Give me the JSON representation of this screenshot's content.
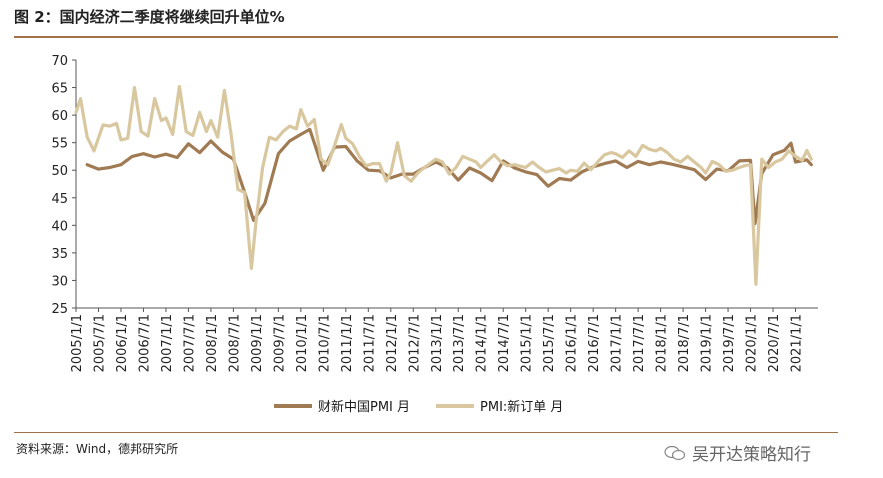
{
  "header": {
    "title": "图 2：国内经济二季度将继续回升单位%"
  },
  "footer": {
    "source": "资料来源：Wind，德邦研究所",
    "watermark": "吴开达策略知行"
  },
  "colors": {
    "series_1": "#a07a52",
    "series_2": "#d9c79f",
    "rule": "#a0724a"
  },
  "chart_data": {
    "type": "line",
    "title": "",
    "xlabel": "",
    "ylabel": "",
    "ylim": [
      25,
      70
    ],
    "yticks": [
      25,
      30,
      35,
      40,
      45,
      50,
      55,
      60,
      65,
      70
    ],
    "xticks": [
      "2005/1/1",
      "2005/7/1",
      "2006/1/1",
      "2006/7/1",
      "2007/1/1",
      "2007/7/1",
      "2008/1/1",
      "2008/7/1",
      "2009/1/1",
      "2009/7/1",
      "2010/1/1",
      "2010/7/1",
      "2011/1/1",
      "2011/7/1",
      "2012/1/1",
      "2012/7/1",
      "2013/1/1",
      "2013/7/1",
      "2014/1/1",
      "2014/7/1",
      "2015/1/1",
      "2015/7/1",
      "2016/1/1",
      "2016/7/1",
      "2017/1/1",
      "2017/7/1",
      "2018/1/1",
      "2018/7/1",
      "2019/1/1",
      "2019/7/1",
      "2020/1/1",
      "2020/7/1",
      "2021/1/1"
    ],
    "grid": false,
    "legend_position": "bottom-center",
    "series": [
      {
        "name": "财新中国PMI 月",
        "points": [
          [
            2005.0,
            null
          ],
          [
            2005.25,
            51
          ],
          [
            2005.5,
            50.2
          ],
          [
            2005.75,
            50.5
          ],
          [
            2006.0,
            51
          ],
          [
            2006.25,
            52.5
          ],
          [
            2006.5,
            53
          ],
          [
            2006.75,
            52.4
          ],
          [
            2007.0,
            52.9
          ],
          [
            2007.25,
            52.3
          ],
          [
            2007.5,
            54.8
          ],
          [
            2007.75,
            53.2
          ],
          [
            2008.0,
            55.3
          ],
          [
            2008.25,
            53.3
          ],
          [
            2008.5,
            52
          ],
          [
            2008.75,
            46
          ],
          [
            2008.95,
            40.9
          ],
          [
            2009.2,
            44
          ],
          [
            2009.5,
            53
          ],
          [
            2009.75,
            55.3
          ],
          [
            2010.0,
            56.5
          ],
          [
            2010.2,
            57.4
          ],
          [
            2010.5,
            50
          ],
          [
            2010.75,
            54.2
          ],
          [
            2011.0,
            54.3
          ],
          [
            2011.25,
            51.7
          ],
          [
            2011.5,
            50
          ],
          [
            2011.75,
            49.9
          ],
          [
            2012.0,
            48.6
          ],
          [
            2012.25,
            49.3
          ],
          [
            2012.5,
            49.3
          ],
          [
            2012.75,
            50.5
          ],
          [
            2013.0,
            51.5
          ],
          [
            2013.25,
            50.5
          ],
          [
            2013.5,
            48.2
          ],
          [
            2013.75,
            50.4
          ],
          [
            2014.0,
            49.5
          ],
          [
            2014.25,
            48.1
          ],
          [
            2014.5,
            51.7
          ],
          [
            2014.75,
            50.4
          ],
          [
            2015.0,
            49.7
          ],
          [
            2015.25,
            49.2
          ],
          [
            2015.5,
            47.1
          ],
          [
            2015.75,
            48.5
          ],
          [
            2016.0,
            48.2
          ],
          [
            2016.25,
            49.7
          ],
          [
            2016.5,
            50.6
          ],
          [
            2016.75,
            51.2
          ],
          [
            2017.0,
            51.7
          ],
          [
            2017.25,
            50.5
          ],
          [
            2017.5,
            51.6
          ],
          [
            2017.75,
            51
          ],
          [
            2018.0,
            51.5
          ],
          [
            2018.25,
            51.1
          ],
          [
            2018.5,
            50.6
          ],
          [
            2018.75,
            50.1
          ],
          [
            2019.0,
            48.3
          ],
          [
            2019.25,
            50.2
          ],
          [
            2019.5,
            49.9
          ],
          [
            2019.75,
            51.7
          ],
          [
            2020.0,
            51.8
          ],
          [
            2020.1,
            40.3
          ],
          [
            2020.25,
            49.4
          ],
          [
            2020.5,
            52.8
          ],
          [
            2020.75,
            53.6
          ],
          [
            2020.9,
            54.9
          ],
          [
            2021.0,
            51.5
          ],
          [
            2021.25,
            51.9
          ],
          [
            2021.35,
            51
          ]
        ]
      },
      {
        "name": "PMI:新订单 月",
        "points": [
          [
            2005.0,
            60.5
          ],
          [
            2005.1,
            63
          ],
          [
            2005.25,
            56
          ],
          [
            2005.4,
            53.5
          ],
          [
            2005.6,
            58.2
          ],
          [
            2005.75,
            58
          ],
          [
            2005.9,
            58.5
          ],
          [
            2006.0,
            55.5
          ],
          [
            2006.15,
            55.8
          ],
          [
            2006.3,
            65
          ],
          [
            2006.45,
            57
          ],
          [
            2006.6,
            56.2
          ],
          [
            2006.75,
            63
          ],
          [
            2006.9,
            59
          ],
          [
            2007.0,
            59.5
          ],
          [
            2007.15,
            56.5
          ],
          [
            2007.3,
            65.2
          ],
          [
            2007.45,
            57
          ],
          [
            2007.6,
            56.3
          ],
          [
            2007.75,
            60.5
          ],
          [
            2007.9,
            57
          ],
          [
            2008.0,
            59
          ],
          [
            2008.15,
            56
          ],
          [
            2008.3,
            64.5
          ],
          [
            2008.45,
            56.5
          ],
          [
            2008.6,
            46.5
          ],
          [
            2008.75,
            46
          ],
          [
            2008.9,
            32.2
          ],
          [
            2009.0,
            40.5
          ],
          [
            2009.15,
            50.5
          ],
          [
            2009.3,
            56
          ],
          [
            2009.45,
            55.5
          ],
          [
            2009.6,
            57
          ],
          [
            2009.75,
            58
          ],
          [
            2009.9,
            57.5
          ],
          [
            2010.0,
            61
          ],
          [
            2010.15,
            58
          ],
          [
            2010.3,
            59.2
          ],
          [
            2010.45,
            52
          ],
          [
            2010.6,
            51
          ],
          [
            2010.75,
            54.5
          ],
          [
            2010.9,
            58.3
          ],
          [
            2011.0,
            55.8
          ],
          [
            2011.15,
            54.8
          ],
          [
            2011.3,
            52.5
          ],
          [
            2011.45,
            50.8
          ],
          [
            2011.6,
            51.2
          ],
          [
            2011.75,
            51.2
          ],
          [
            2011.9,
            48
          ],
          [
            2012.0,
            49.5
          ],
          [
            2012.15,
            55
          ],
          [
            2012.3,
            49
          ],
          [
            2012.45,
            48
          ],
          [
            2012.6,
            49.5
          ],
          [
            2012.75,
            50.5
          ],
          [
            2013.0,
            52
          ],
          [
            2013.15,
            51.5
          ],
          [
            2013.3,
            49.3
          ],
          [
            2013.45,
            50.5
          ],
          [
            2013.6,
            52.5
          ],
          [
            2013.75,
            52
          ],
          [
            2013.9,
            51.5
          ],
          [
            2014.0,
            50.5
          ],
          [
            2014.15,
            51.7
          ],
          [
            2014.3,
            52.8
          ],
          [
            2014.45,
            51.5
          ],
          [
            2014.6,
            50.8
          ],
          [
            2014.75,
            51
          ],
          [
            2015.0,
            50.5
          ],
          [
            2015.15,
            51.5
          ],
          [
            2015.3,
            50.5
          ],
          [
            2015.45,
            49.7
          ],
          [
            2015.6,
            50
          ],
          [
            2015.75,
            50.3
          ],
          [
            2015.9,
            49.5
          ],
          [
            2016.0,
            50
          ],
          [
            2016.15,
            49.8
          ],
          [
            2016.3,
            51.3
          ],
          [
            2016.45,
            50.1
          ],
          [
            2016.6,
            51.5
          ],
          [
            2016.75,
            52.8
          ],
          [
            2016.9,
            53.2
          ],
          [
            2017.0,
            53
          ],
          [
            2017.15,
            52.3
          ],
          [
            2017.3,
            53.5
          ],
          [
            2017.45,
            52.5
          ],
          [
            2017.6,
            54.5
          ],
          [
            2017.75,
            53.8
          ],
          [
            2017.9,
            53.5
          ],
          [
            2018.0,
            54
          ],
          [
            2018.15,
            53.2
          ],
          [
            2018.3,
            52
          ],
          [
            2018.45,
            51.5
          ],
          [
            2018.6,
            52.5
          ],
          [
            2018.75,
            51.5
          ],
          [
            2018.9,
            50.5
          ],
          [
            2019.0,
            49.5
          ],
          [
            2019.15,
            51.6
          ],
          [
            2019.3,
            51
          ],
          [
            2019.45,
            49.8
          ],
          [
            2019.6,
            50
          ],
          [
            2019.75,
            50.5
          ],
          [
            2019.9,
            50.9
          ],
          [
            2020.0,
            51
          ],
          [
            2020.12,
            29.3
          ],
          [
            2020.25,
            52
          ],
          [
            2020.4,
            50.5
          ],
          [
            2020.55,
            51.5
          ],
          [
            2020.7,
            52
          ],
          [
            2020.85,
            53.5
          ],
          [
            2021.0,
            52.5
          ],
          [
            2021.15,
            51.8
          ],
          [
            2021.25,
            53.6
          ],
          [
            2021.35,
            52
          ]
        ]
      }
    ]
  }
}
